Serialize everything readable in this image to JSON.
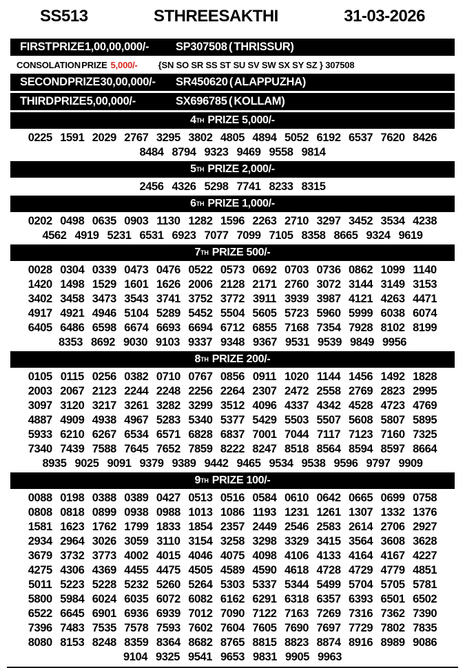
{
  "colors": {
    "bar_bg": "#000000",
    "bar_text": "#ffffff",
    "accent_red": "#d9251d"
  },
  "header": {
    "draw_code": "SS513",
    "title": "STHREE SAKTHI",
    "date": "31-03-2026"
  },
  "top_prizes": [
    {
      "label": "FIRST PRIZE",
      "amount": "1,00,00,000/-",
      "winner": "SP307508 ( THRISSUR)"
    },
    {
      "label": "SECOND PRIZE",
      "amount": "30,00,000/-",
      "winner": "SR450620 ( ALAPPUZHA)"
    },
    {
      "label": "THIRD PRIZE",
      "amount": "5,00,000/-",
      "winner": "SX696785 ( KOLLAM)"
    }
  ],
  "consolation": {
    "label": "CONSOLATION PRIZE",
    "amount": "5,000/-",
    "series": "{SN SO SR SS ST SU SV SW SX SY SZ } 307508"
  },
  "sections": [
    {
      "num": "4",
      "ord": "TH",
      "rest": "PRIZE 5,000/-",
      "rows": [
        [
          "0225",
          "1591",
          "2029",
          "2767",
          "3295",
          "3802",
          "4805",
          "4894",
          "5052",
          "6192",
          "6537",
          "7620",
          "8426"
        ],
        [
          "8484",
          "8794",
          "9323",
          "9469",
          "9558",
          "9814"
        ]
      ]
    },
    {
      "num": "5",
      "ord": "TH",
      "rest": "PRIZE 2,000/-",
      "rows": [
        [
          "2456",
          "4326",
          "5298",
          "7741",
          "8233",
          "8315"
        ]
      ]
    },
    {
      "num": "6",
      "ord": "TH",
      "rest": "PRIZE 1,000/-",
      "rows": [
        [
          "0202",
          "0498",
          "0635",
          "0903",
          "1130",
          "1282",
          "1596",
          "2263",
          "2710",
          "3297",
          "3452",
          "3534",
          "4238"
        ],
        [
          "4562",
          "4919",
          "5231",
          "6531",
          "6923",
          "7077",
          "7099",
          "7105",
          "8358",
          "8665",
          "9324",
          "9619"
        ]
      ]
    },
    {
      "num": "7",
      "ord": "TH",
      "rest": "PRIZE 500/-",
      "rows": [
        [
          "0028",
          "0304",
          "0339",
          "0473",
          "0476",
          "0522",
          "0573",
          "0692",
          "0703",
          "0736",
          "0862",
          "1099",
          "1140"
        ],
        [
          "1420",
          "1498",
          "1529",
          "1601",
          "1626",
          "2006",
          "2128",
          "2171",
          "2760",
          "3072",
          "3144",
          "3149",
          "3153"
        ],
        [
          "3402",
          "3458",
          "3473",
          "3543",
          "3741",
          "3752",
          "3772",
          "3911",
          "3939",
          "3987",
          "4121",
          "4263",
          "4471"
        ],
        [
          "4917",
          "4921",
          "4946",
          "5104",
          "5289",
          "5452",
          "5504",
          "5605",
          "5723",
          "5960",
          "5999",
          "6038",
          "6074"
        ],
        [
          "6405",
          "6486",
          "6598",
          "6674",
          "6693",
          "6694",
          "6712",
          "6855",
          "7168",
          "7354",
          "7928",
          "8102",
          "8199"
        ],
        [
          "8353",
          "8692",
          "9030",
          "9103",
          "9337",
          "9348",
          "9367",
          "9531",
          "9539",
          "9849",
          "9956"
        ]
      ]
    },
    {
      "num": "8",
      "ord": "TH",
      "rest": "PRIZE 200/-",
      "rows": [
        [
          "0105",
          "0115",
          "0256",
          "0382",
          "0710",
          "0767",
          "0856",
          "0911",
          "1020",
          "1144",
          "1456",
          "1492",
          "1828"
        ],
        [
          "2003",
          "2067",
          "2123",
          "2244",
          "2248",
          "2256",
          "2264",
          "2307",
          "2472",
          "2558",
          "2769",
          "2823",
          "2995"
        ],
        [
          "3097",
          "3120",
          "3217",
          "3261",
          "3282",
          "3299",
          "3512",
          "4096",
          "4337",
          "4342",
          "4528",
          "4723",
          "4769"
        ],
        [
          "4887",
          "4909",
          "4938",
          "4967",
          "5283",
          "5340",
          "5377",
          "5429",
          "5503",
          "5507",
          "5608",
          "5807",
          "5895"
        ],
        [
          "5933",
          "6210",
          "6267",
          "6534",
          "6571",
          "6828",
          "6837",
          "7001",
          "7044",
          "7117",
          "7123",
          "7160",
          "7325"
        ],
        [
          "7340",
          "7439",
          "7588",
          "7645",
          "7652",
          "7859",
          "8222",
          "8247",
          "8518",
          "8564",
          "8594",
          "8597",
          "8664"
        ],
        [
          "8935",
          "9025",
          "9091",
          "9379",
          "9389",
          "9442",
          "9465",
          "9534",
          "9538",
          "9596",
          "9797",
          "9909"
        ]
      ]
    },
    {
      "num": "9",
      "ord": "TH",
      "rest": "PRIZE 100/-",
      "rows": [
        [
          "0088",
          "0198",
          "0388",
          "0389",
          "0427",
          "0513",
          "0516",
          "0584",
          "0610",
          "0642",
          "0665",
          "0699",
          "0758"
        ],
        [
          "0808",
          "0818",
          "0899",
          "0938",
          "0988",
          "1013",
          "1086",
          "1193",
          "1231",
          "1261",
          "1307",
          "1332",
          "1376"
        ],
        [
          "1581",
          "1623",
          "1762",
          "1799",
          "1833",
          "1854",
          "2357",
          "2449",
          "2546",
          "2583",
          "2614",
          "2706",
          "2927"
        ],
        [
          "2934",
          "2964",
          "3026",
          "3059",
          "3110",
          "3154",
          "3258",
          "3298",
          "3329",
          "3415",
          "3564",
          "3608",
          "3628"
        ],
        [
          "3679",
          "3732",
          "3773",
          "4002",
          "4015",
          "4046",
          "4075",
          "4098",
          "4106",
          "4133",
          "4164",
          "4167",
          "4227"
        ],
        [
          "4275",
          "4306",
          "4369",
          "4455",
          "4475",
          "4505",
          "4589",
          "4590",
          "4618",
          "4728",
          "4729",
          "4779",
          "4851"
        ],
        [
          "5011",
          "5223",
          "5228",
          "5232",
          "5260",
          "5264",
          "5303",
          "5337",
          "5344",
          "5499",
          "5704",
          "5705",
          "5781"
        ],
        [
          "5800",
          "5984",
          "6024",
          "6035",
          "6072",
          "6082",
          "6162",
          "6291",
          "6318",
          "6357",
          "6393",
          "6501",
          "6502"
        ],
        [
          "6522",
          "6645",
          "6901",
          "6936",
          "6939",
          "7012",
          "7090",
          "7122",
          "7163",
          "7269",
          "7316",
          "7362",
          "7390"
        ],
        [
          "7396",
          "7483",
          "7535",
          "7578",
          "7593",
          "7602",
          "7604",
          "7605",
          "7690",
          "7697",
          "7729",
          "7802",
          "7835"
        ],
        [
          "8080",
          "8153",
          "8248",
          "8359",
          "8364",
          "8682",
          "8765",
          "8815",
          "8823",
          "8874",
          "8916",
          "8989",
          "9086"
        ],
        [
          "9104",
          "9325",
          "9541",
          "9653",
          "9831",
          "9905",
          "9963"
        ]
      ]
    }
  ]
}
